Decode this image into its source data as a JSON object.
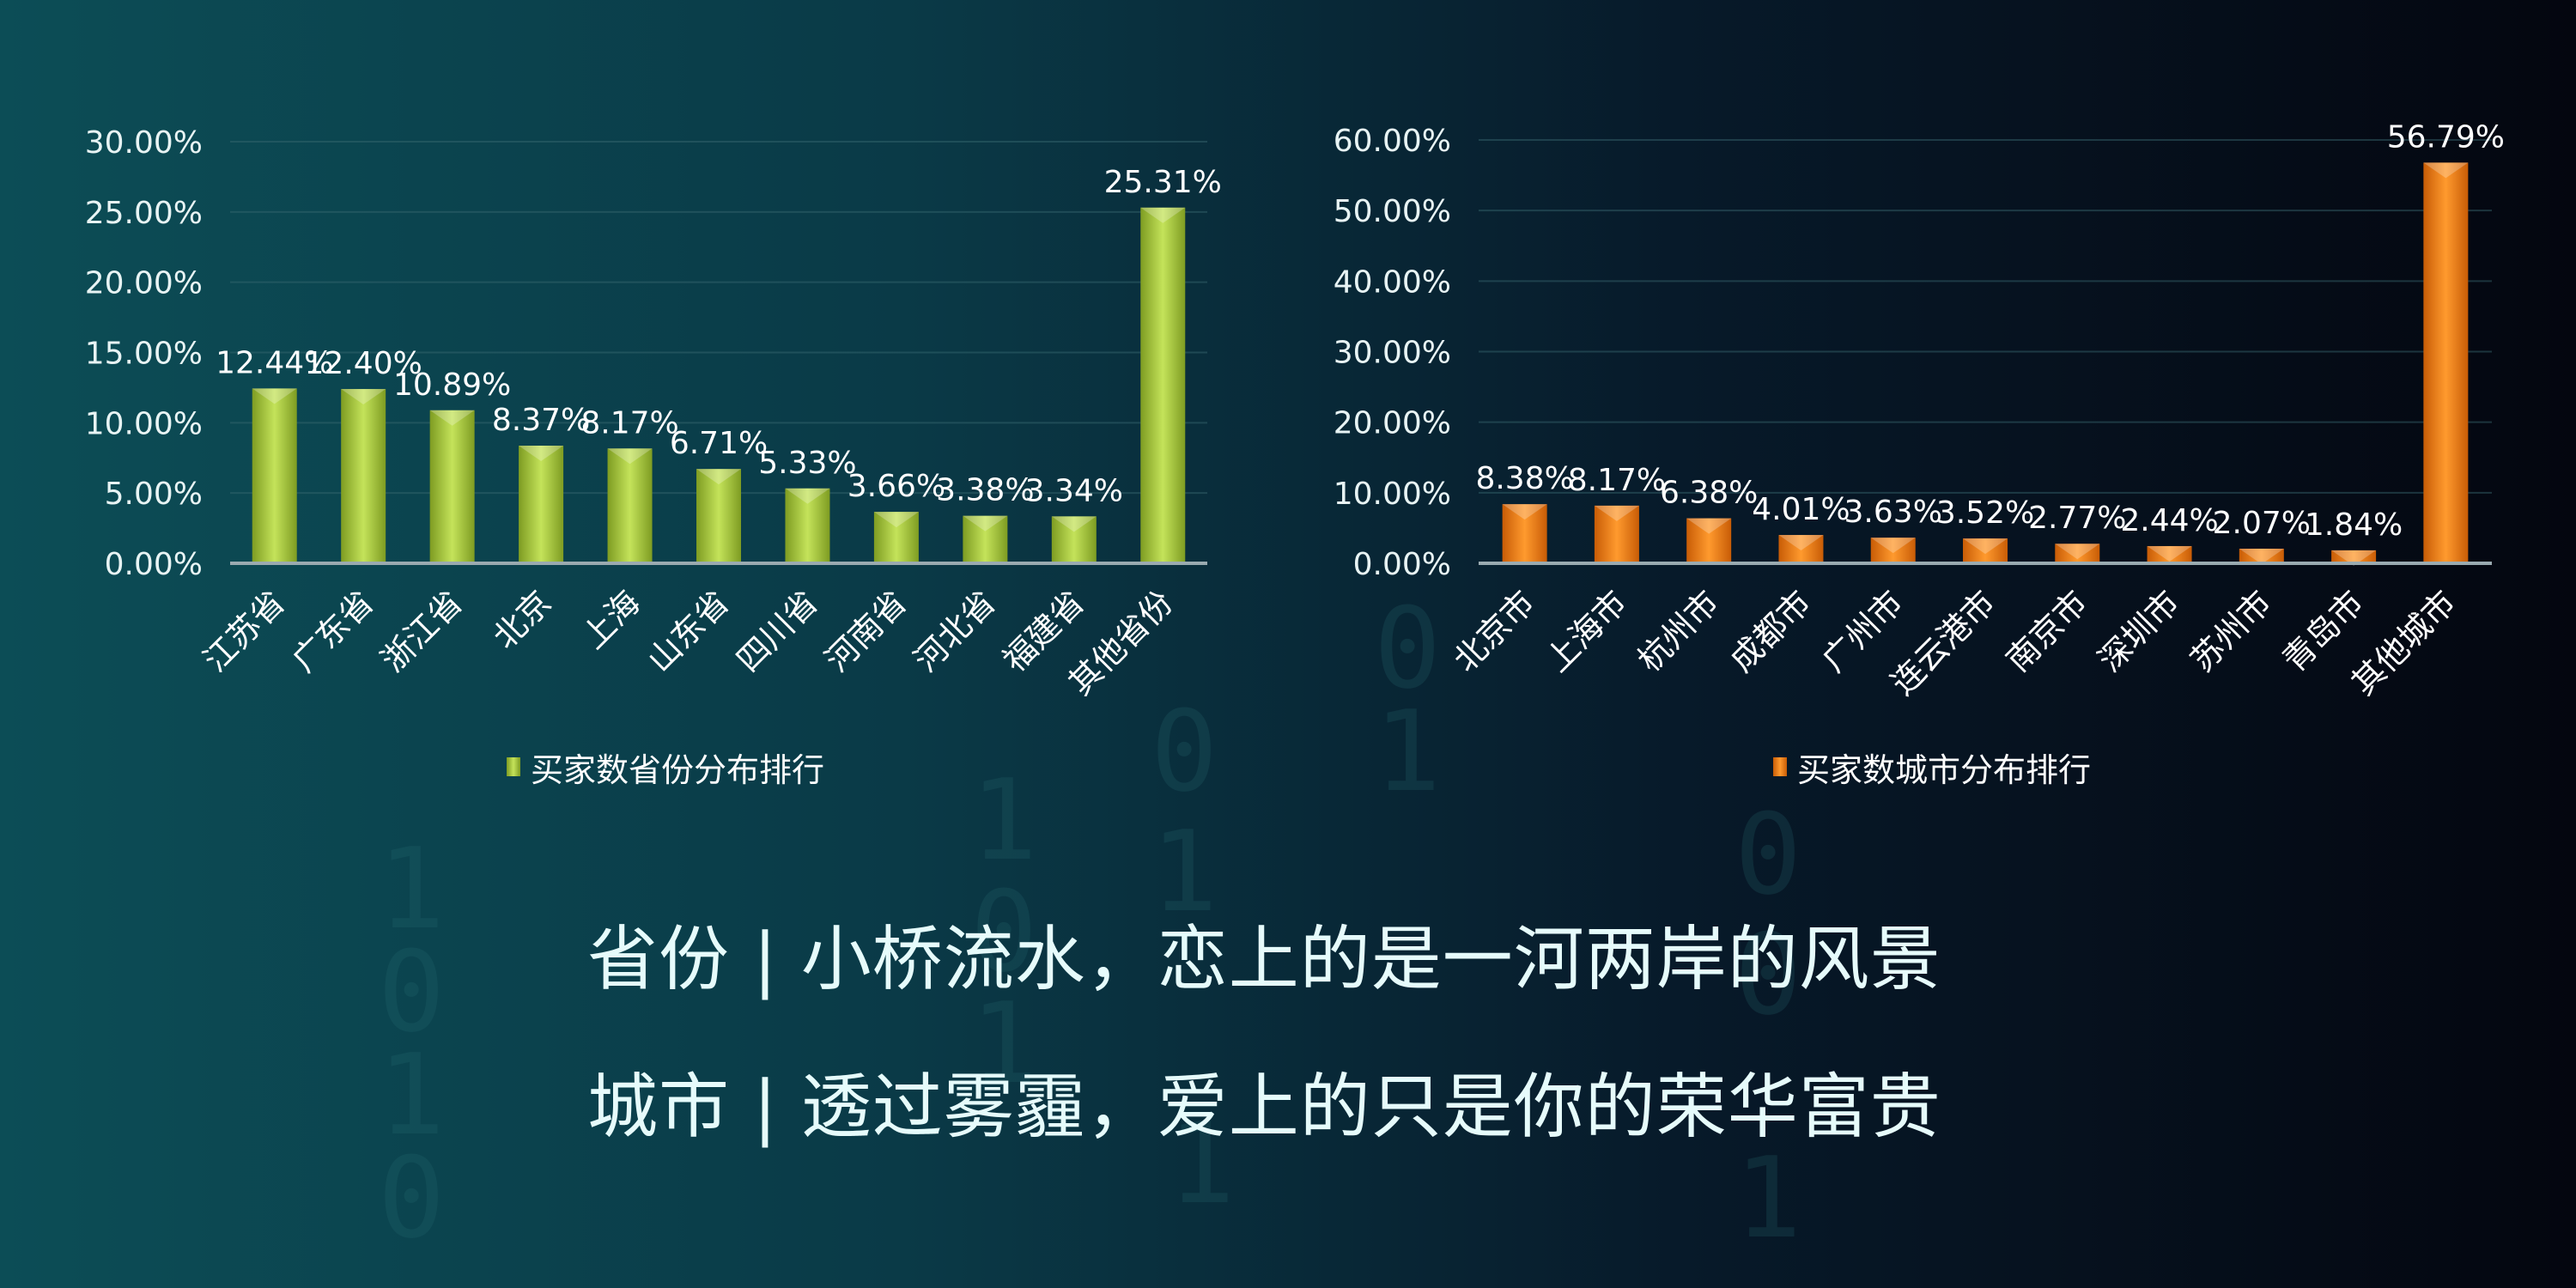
{
  "background_digits": [
    "1",
    "0",
    "1",
    "0",
    "1",
    "0",
    "1",
    "0",
    "1",
    "1",
    "0",
    "1",
    "0",
    "0",
    "1"
  ],
  "colors": {
    "province_bar": "#a4c63a",
    "city_bar": "#ee7a12",
    "text": "#ffffff"
  },
  "chart_data": [
    {
      "type": "bar",
      "title": "",
      "legend": "买家数省份分布排行",
      "legend_position": "bottom",
      "categories": [
        "江苏省",
        "广东省",
        "浙江省",
        "北京",
        "上海",
        "山东省",
        "四川省",
        "河南省",
        "河北省",
        "福建省",
        "其他省份"
      ],
      "values": [
        12.44,
        12.4,
        10.89,
        8.37,
        8.17,
        6.71,
        5.33,
        3.66,
        3.38,
        3.34,
        25.31
      ],
      "data_labels": [
        "12.44%",
        "12.40%",
        "10.89%",
        "8.37%",
        "8.17%",
        "6.71%",
        "5.33%",
        "3.66%",
        "3.38%",
        "3.34%",
        "25.31%"
      ],
      "ylim": [
        0,
        30
      ],
      "yticks": [
        "0.00%",
        "5.00%",
        "10.00%",
        "15.00%",
        "20.00%",
        "25.00%",
        "30.00%"
      ],
      "grid": true,
      "color": "#a4c63a"
    },
    {
      "type": "bar",
      "title": "",
      "legend": "买家数城市分布排行",
      "legend_position": "bottom",
      "categories": [
        "北京市",
        "上海市",
        "杭州市",
        "成都市",
        "广州市",
        "连云港市",
        "南京市",
        "深圳市",
        "苏州市",
        "青岛市",
        "其他城市"
      ],
      "values": [
        8.38,
        8.17,
        6.38,
        4.01,
        3.63,
        3.52,
        2.77,
        2.44,
        2.07,
        1.84,
        56.79
      ],
      "data_labels": [
        "8.38%",
        "8.17%",
        "6.38%",
        "4.01%",
        "3.63%",
        "3.52%",
        "2.77%",
        "2.44%",
        "2.07%",
        "1.84%",
        "56.79%"
      ],
      "ylim": [
        0,
        60
      ],
      "yticks": [
        "0.00%",
        "10.00%",
        "20.00%",
        "30.00%",
        "40.00%",
        "50.00%",
        "60.00%"
      ],
      "grid": true,
      "color": "#ee7a12"
    }
  ],
  "captions": {
    "province": "省份 | 小桥流水，恋上的是一河两岸的风景",
    "city": "城市 | 透过雾霾，爱上的只是你的荣华富贵"
  }
}
